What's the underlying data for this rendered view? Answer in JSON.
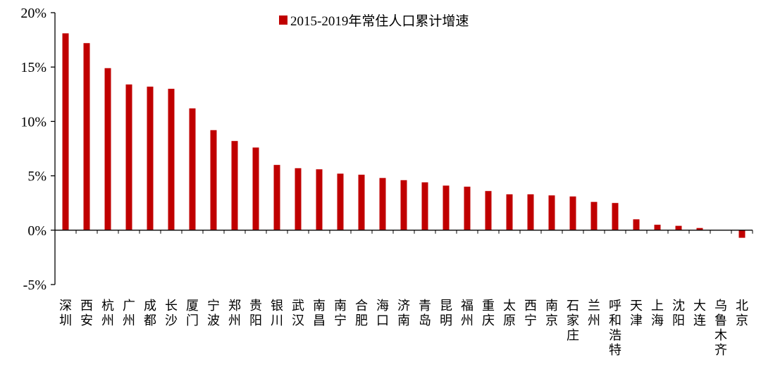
{
  "chart_data": {
    "type": "bar",
    "series": [
      {
        "name": "2015-2019年常住人口累计增速",
        "color": "#C00000",
        "values": [
          18.1,
          17.2,
          14.9,
          13.4,
          13.2,
          13.0,
          11.2,
          9.2,
          8.2,
          7.6,
          6.0,
          5.7,
          5.6,
          5.2,
          5.1,
          4.8,
          4.6,
          4.4,
          4.1,
          4.0,
          3.6,
          3.3,
          3.3,
          3.2,
          3.1,
          2.6,
          2.5,
          1.0,
          0.5,
          0.4,
          0.2,
          0.0,
          -0.7
        ]
      }
    ],
    "categories": [
      "深圳",
      "西安",
      "杭州",
      "广州",
      "成都",
      "长沙",
      "厦门",
      "宁波",
      "郑州",
      "贵阳",
      "银川",
      "武汉",
      "南昌",
      "南宁",
      "合肥",
      "海口",
      "济南",
      "青岛",
      "昆明",
      "福州",
      "重庆",
      "太原",
      "西宁",
      "南京",
      "石家庄",
      "兰州",
      "呼和浩特",
      "天津",
      "上海",
      "沈阳",
      "大连",
      "乌鲁木齐",
      "北京"
    ],
    "yticks": [
      "20%",
      "15%",
      "10%",
      "5%",
      "0%",
      "-5%"
    ],
    "ylim": [
      -5,
      20
    ],
    "title": "",
    "xlabel": "",
    "ylabel": "",
    "legend": "top-center",
    "grid": false
  }
}
